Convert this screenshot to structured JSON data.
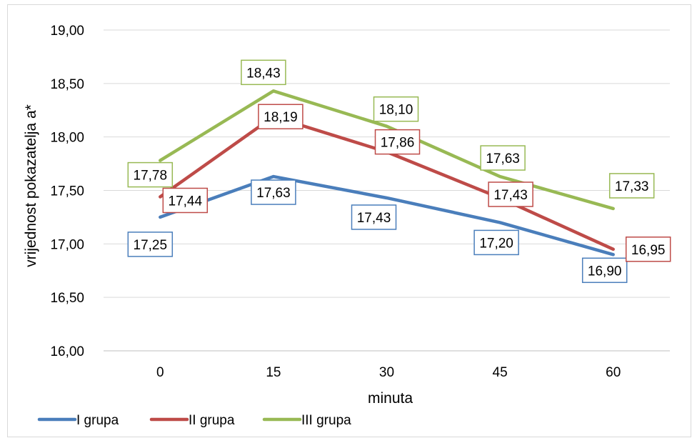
{
  "chart_data": {
    "type": "line",
    "title": "",
    "xlabel": "minuta",
    "ylabel": "vrijednost pokazatelja a*",
    "ylim": [
      16.0,
      19.0
    ],
    "y_ticks": [
      "16,00",
      "16,50",
      "17,00",
      "17,50",
      "18,00",
      "18,50",
      "19,00"
    ],
    "y_tick_values": [
      16.0,
      16.5,
      17.0,
      17.5,
      18.0,
      18.5,
      19.0
    ],
    "categories": [
      "0",
      "15",
      "30",
      "45",
      "60"
    ],
    "grid": "horizontal",
    "legend_position": "bottom",
    "series": [
      {
        "name": "I grupa",
        "color": "#4a7ebb",
        "values": [
          17.25,
          17.63,
          17.43,
          17.2,
          16.9
        ],
        "labels": [
          "17,25",
          "17,63",
          "17,43",
          "17,20",
          "16,90"
        ]
      },
      {
        "name": "II grupa",
        "color": "#be4b48",
        "values": [
          17.44,
          18.19,
          17.86,
          17.43,
          16.95
        ],
        "labels": [
          "17,44",
          "18,19",
          "17,86",
          "17,43",
          "16,95"
        ]
      },
      {
        "name": "III grupa",
        "color": "#98b954",
        "values": [
          17.78,
          18.43,
          18.1,
          17.63,
          17.33
        ],
        "labels": [
          "17,78",
          "18,43",
          "18,10",
          "17,63",
          "17,33"
        ]
      }
    ]
  }
}
